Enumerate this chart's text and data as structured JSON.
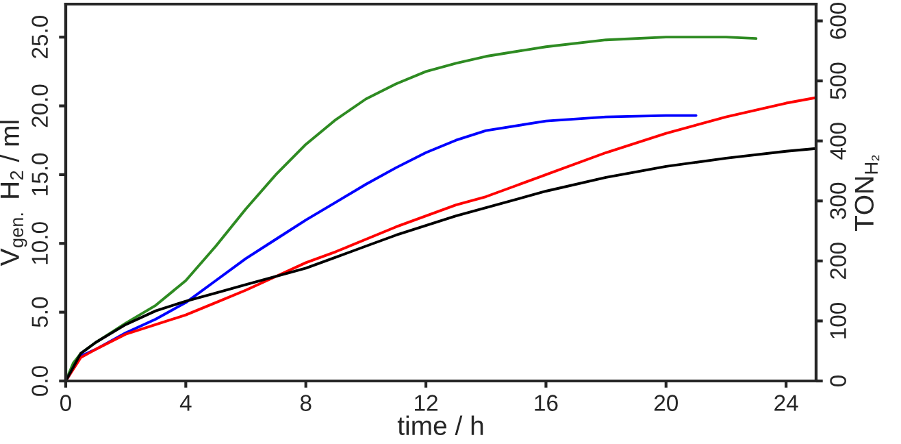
{
  "chart_data": {
    "type": "line",
    "xlabel": "time / h",
    "ylabel": "V$_{gen.}$ H$_{2}$ / ml",
    "y2label": "TON$_{H₂}$",
    "xlim": [
      0,
      25
    ],
    "xticks": [
      0,
      4,
      8,
      12,
      16,
      20,
      24
    ],
    "ylim": [
      0,
      27.4
    ],
    "yticks": [
      {
        "value": 0,
        "label": "0.0"
      },
      {
        "value": 5,
        "label": "5.0"
      },
      {
        "value": 10,
        "label": "10.0"
      },
      {
        "value": 15,
        "label": "15.0"
      },
      {
        "value": 20,
        "label": "20.0"
      },
      {
        "value": 25,
        "label": "25.0"
      }
    ],
    "y2lim": [
      0,
      628
    ],
    "y2ticks": [
      0,
      100,
      200,
      300,
      400,
      500,
      600
    ],
    "grid": false,
    "legend": false,
    "marker": "none",
    "line_style": "solid",
    "series": [
      {
        "color": "#2e8b22",
        "x": [
          0,
          0.25,
          0.5,
          1,
          2,
          3,
          4,
          5,
          6,
          7,
          8,
          9,
          10,
          11,
          12,
          13,
          14,
          16,
          18,
          20,
          22,
          23
        ],
        "values": [
          0,
          1.3,
          2.0,
          2.8,
          4.2,
          5.5,
          7.3,
          9.8,
          12.5,
          15.0,
          17.2,
          19.0,
          20.5,
          21.6,
          22.5,
          23.1,
          23.6,
          24.3,
          24.8,
          25.0,
          25.0,
          24.9
        ]
      },
      {
        "color": "#0000ff",
        "x": [
          0,
          0.5,
          1,
          2,
          3,
          4,
          5,
          6,
          7,
          8,
          9,
          10,
          11,
          12,
          13,
          14,
          16,
          18,
          20,
          21
        ],
        "values": [
          0,
          1.8,
          2.3,
          3.5,
          4.5,
          5.7,
          7.3,
          8.9,
          10.3,
          11.7,
          13.0,
          14.3,
          15.5,
          16.6,
          17.5,
          18.2,
          18.9,
          19.2,
          19.3,
          19.3
        ]
      },
      {
        "color": "#ff0000",
        "x": [
          0,
          0.5,
          1,
          2,
          3,
          4,
          5,
          6,
          7,
          8,
          9,
          10,
          11,
          12,
          13,
          14,
          15,
          16,
          18,
          20,
          22,
          24,
          25
        ],
        "values": [
          0,
          1.7,
          2.3,
          3.4,
          4.1,
          4.8,
          5.7,
          6.6,
          7.6,
          8.6,
          9.4,
          10.3,
          11.2,
          12.0,
          12.8,
          13.4,
          14.2,
          15.0,
          16.6,
          18.0,
          19.2,
          20.2,
          20.6
        ]
      },
      {
        "color": "#000000",
        "x": [
          0,
          0.5,
          1,
          2,
          3,
          4,
          5,
          6,
          7,
          8,
          9,
          10,
          11,
          12,
          13,
          14,
          16,
          18,
          20,
          22,
          24,
          25
        ],
        "values": [
          0,
          2.0,
          2.8,
          4.1,
          5.1,
          5.8,
          6.4,
          7.0,
          7.6,
          8.2,
          9.0,
          9.8,
          10.6,
          11.3,
          12.0,
          12.6,
          13.8,
          14.8,
          15.6,
          16.2,
          16.7,
          16.9
        ]
      }
    ]
  }
}
